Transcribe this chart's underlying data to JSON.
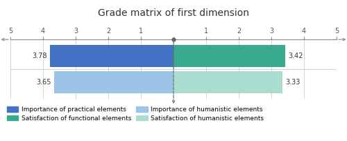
{
  "title": "Grade matrix of first dimension",
  "bar1_importance": 3.78,
  "bar1_satisfaction": 3.42,
  "bar2_importance": 3.65,
  "bar2_satisfaction": 3.33,
  "color_importance_practical": "#4472C4",
  "color_importance_humanistic": "#9DC3E6",
  "color_satisfaction_functional": "#3aaa8e",
  "color_satisfaction_humanistic": "#aaddd0",
  "axis_range": 5,
  "legend_labels": [
    "Importance of practical elements",
    "Importance of humanistic elements",
    "Satisfaction of functional elements",
    "Satisfaction of humanistic elements"
  ],
  "bg_color": "#ffffff",
  "grid_color": "#cccccc",
  "axis_line_color": "#888888",
  "center_line_color": "#666666",
  "title_fontsize": 10,
  "label_fontsize": 7,
  "tick_fontsize": 7,
  "legend_fontsize": 6.5
}
